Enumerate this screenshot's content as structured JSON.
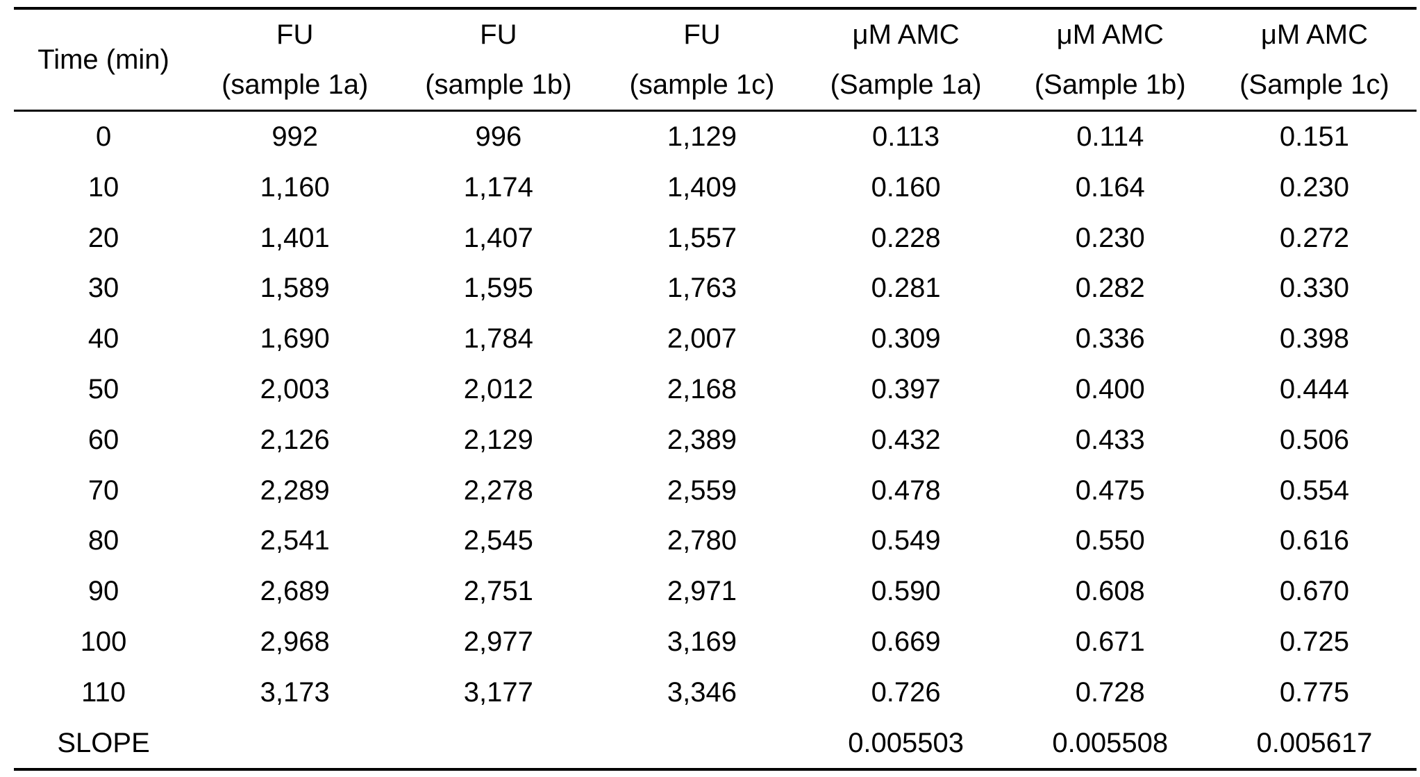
{
  "table": {
    "headers": [
      {
        "line1": "Time (min)",
        "line2": ""
      },
      {
        "line1": "FU",
        "line2": "(sample 1a)"
      },
      {
        "line1": "FU",
        "line2": "(sample 1b)"
      },
      {
        "line1": "FU",
        "line2": "(sample 1c)"
      },
      {
        "line1": "μM AMC",
        "line2": "(Sample 1a)"
      },
      {
        "line1": "μM AMC",
        "line2": "(Sample 1b)"
      },
      {
        "line1": "μM AMC",
        "line2": "(Sample 1c)"
      }
    ],
    "rows": [
      [
        "0",
        "992",
        "996",
        "1,129",
        "0.113",
        "0.114",
        "0.151"
      ],
      [
        "10",
        "1,160",
        "1,174",
        "1,409",
        "0.160",
        "0.164",
        "0.230"
      ],
      [
        "20",
        "1,401",
        "1,407",
        "1,557",
        "0.228",
        "0.230",
        "0.272"
      ],
      [
        "30",
        "1,589",
        "1,595",
        "1,763",
        "0.281",
        "0.282",
        "0.330"
      ],
      [
        "40",
        "1,690",
        "1,784",
        "2,007",
        "0.309",
        "0.336",
        "0.398"
      ],
      [
        "50",
        "2,003",
        "2,012",
        "2,168",
        "0.397",
        "0.400",
        "0.444"
      ],
      [
        "60",
        "2,126",
        "2,129",
        "2,389",
        "0.432",
        "0.433",
        "0.506"
      ],
      [
        "70",
        "2,289",
        "2,278",
        "2,559",
        "0.478",
        "0.475",
        "0.554"
      ],
      [
        "80",
        "2,541",
        "2,545",
        "2,780",
        "0.549",
        "0.550",
        "0.616"
      ],
      [
        "90",
        "2,689",
        "2,751",
        "2,971",
        "0.590",
        "0.608",
        "0.670"
      ],
      [
        "100",
        "2,968",
        "2,977",
        "3,169",
        "0.669",
        "0.671",
        "0.725"
      ],
      [
        "110",
        "3,173",
        "3,177",
        "3,346",
        "0.726",
        "0.728",
        "0.775"
      ]
    ],
    "slope_row": [
      "SLOPE",
      "",
      "",
      "",
      "0.005503",
      "0.005508",
      "0.005617"
    ]
  }
}
